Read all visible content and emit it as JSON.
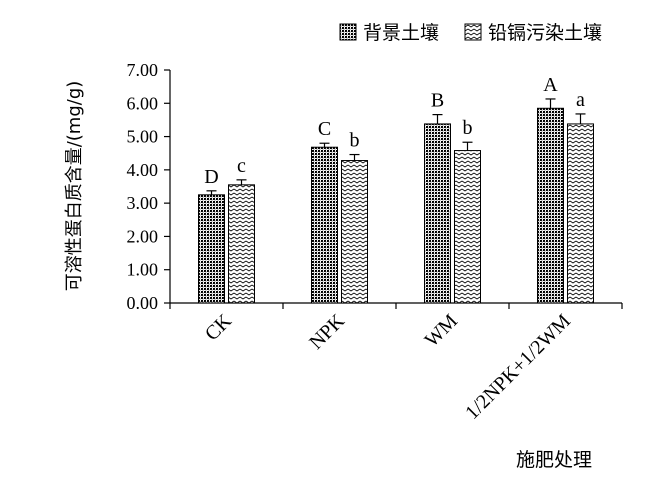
{
  "chart_data": {
    "type": "bar",
    "title": "",
    "xlabel": "施肥处理",
    "ylabel": "可溶性蛋白质含量/(mg/g)",
    "categories": [
      "CK",
      "NPK",
      "WM",
      "1/2NPK+1/2WM"
    ],
    "ylim": [
      0,
      7
    ],
    "yticks": [
      "0.00",
      "1.00",
      "2.00",
      "3.00",
      "4.00",
      "5.00",
      "6.00",
      "7.00"
    ],
    "legend_position": "top-right",
    "grid": false,
    "series": [
      {
        "name": "背景土壤",
        "values": [
          3.25,
          4.68,
          5.38,
          5.85
        ],
        "errors": [
          0.12,
          0.12,
          0.28,
          0.28
        ],
        "labels": [
          "D",
          "C",
          "B",
          "A"
        ],
        "pattern": "dense-dots"
      },
      {
        "name": "铅镉污染土壤",
        "values": [
          3.55,
          4.28,
          4.58,
          5.38
        ],
        "errors": [
          0.15,
          0.18,
          0.25,
          0.3
        ],
        "labels": [
          "c",
          "b",
          "b",
          "a"
        ],
        "pattern": "zigzag"
      }
    ]
  }
}
